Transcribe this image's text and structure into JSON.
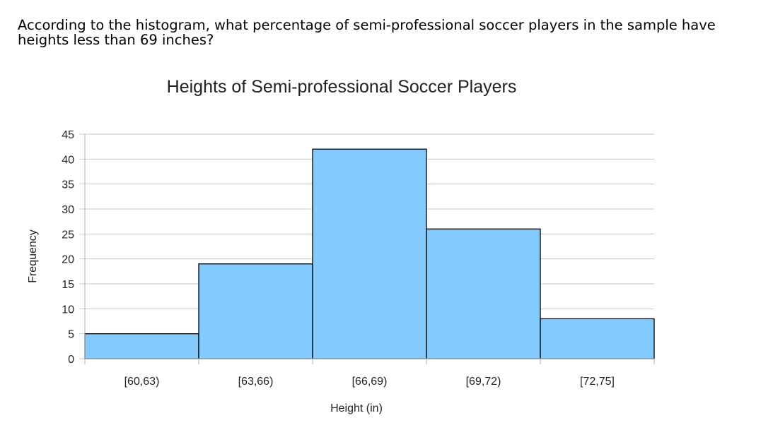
{
  "question": {
    "text": "According to the histogram, what percentage of semi-professional soccer players in the sample have heights less than 69 inches?"
  },
  "chart_data": {
    "type": "bar",
    "title": "Heights of Semi-professional Soccer Players",
    "xlabel": "Height (in)",
    "ylabel": "Frequency",
    "categories": [
      "[60,63)",
      "[63,66)",
      "[66,69)",
      "[69,72)",
      "[72,75]"
    ],
    "values": [
      5,
      19,
      42,
      26,
      8
    ],
    "ylim": [
      0,
      45
    ],
    "yticks": [
      0,
      5,
      10,
      15,
      20,
      25,
      30,
      35,
      40,
      45
    ],
    "grid": true,
    "bar_color": "#83caff",
    "bar_edge_color": "#000000",
    "grid_color": "#c8c8c8"
  }
}
